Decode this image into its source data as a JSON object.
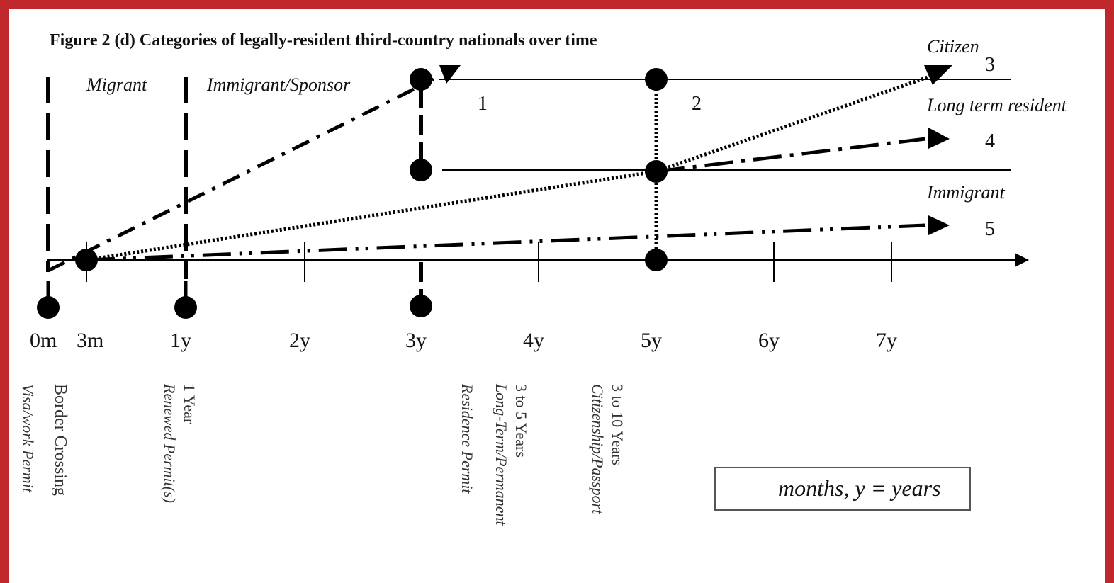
{
  "title": "Figure 2 (d) Categories of legally-resident third-country nationals over time",
  "phases": {
    "migrant": "Migrant",
    "immigrant_sponsor": "Immigrant/Sponsor"
  },
  "outcomes": [
    {
      "label": "Citizen",
      "number": "3"
    },
    {
      "label": "Long term resident",
      "number": "4"
    },
    {
      "label": "Immigrant",
      "number": "5"
    }
  ],
  "top_line_numbers": [
    "1",
    "2"
  ],
  "axis_ticks": [
    "0m",
    "3m",
    "1y",
    "2y",
    "3y",
    "4y",
    "5y",
    "6y",
    "7y"
  ],
  "milestones": [
    {
      "line1": "Visa/work Permit",
      "line2": ""
    },
    {
      "line1": "Border Crossing",
      "line2": ""
    },
    {
      "line1": "1 Year",
      "line2": "Renewed Permit(s)"
    },
    {
      "line1": "3 to 5 Years",
      "line2": "Long-Term/Permanent",
      "line3": "Residence Permit"
    },
    {
      "line1": "3 to 10 Years",
      "line2": "Citizenship/Passport"
    }
  ],
  "legend": "months, y = years",
  "colors": {
    "frame": "#c0272d",
    "ink": "#000000",
    "background": "#ffffff"
  }
}
